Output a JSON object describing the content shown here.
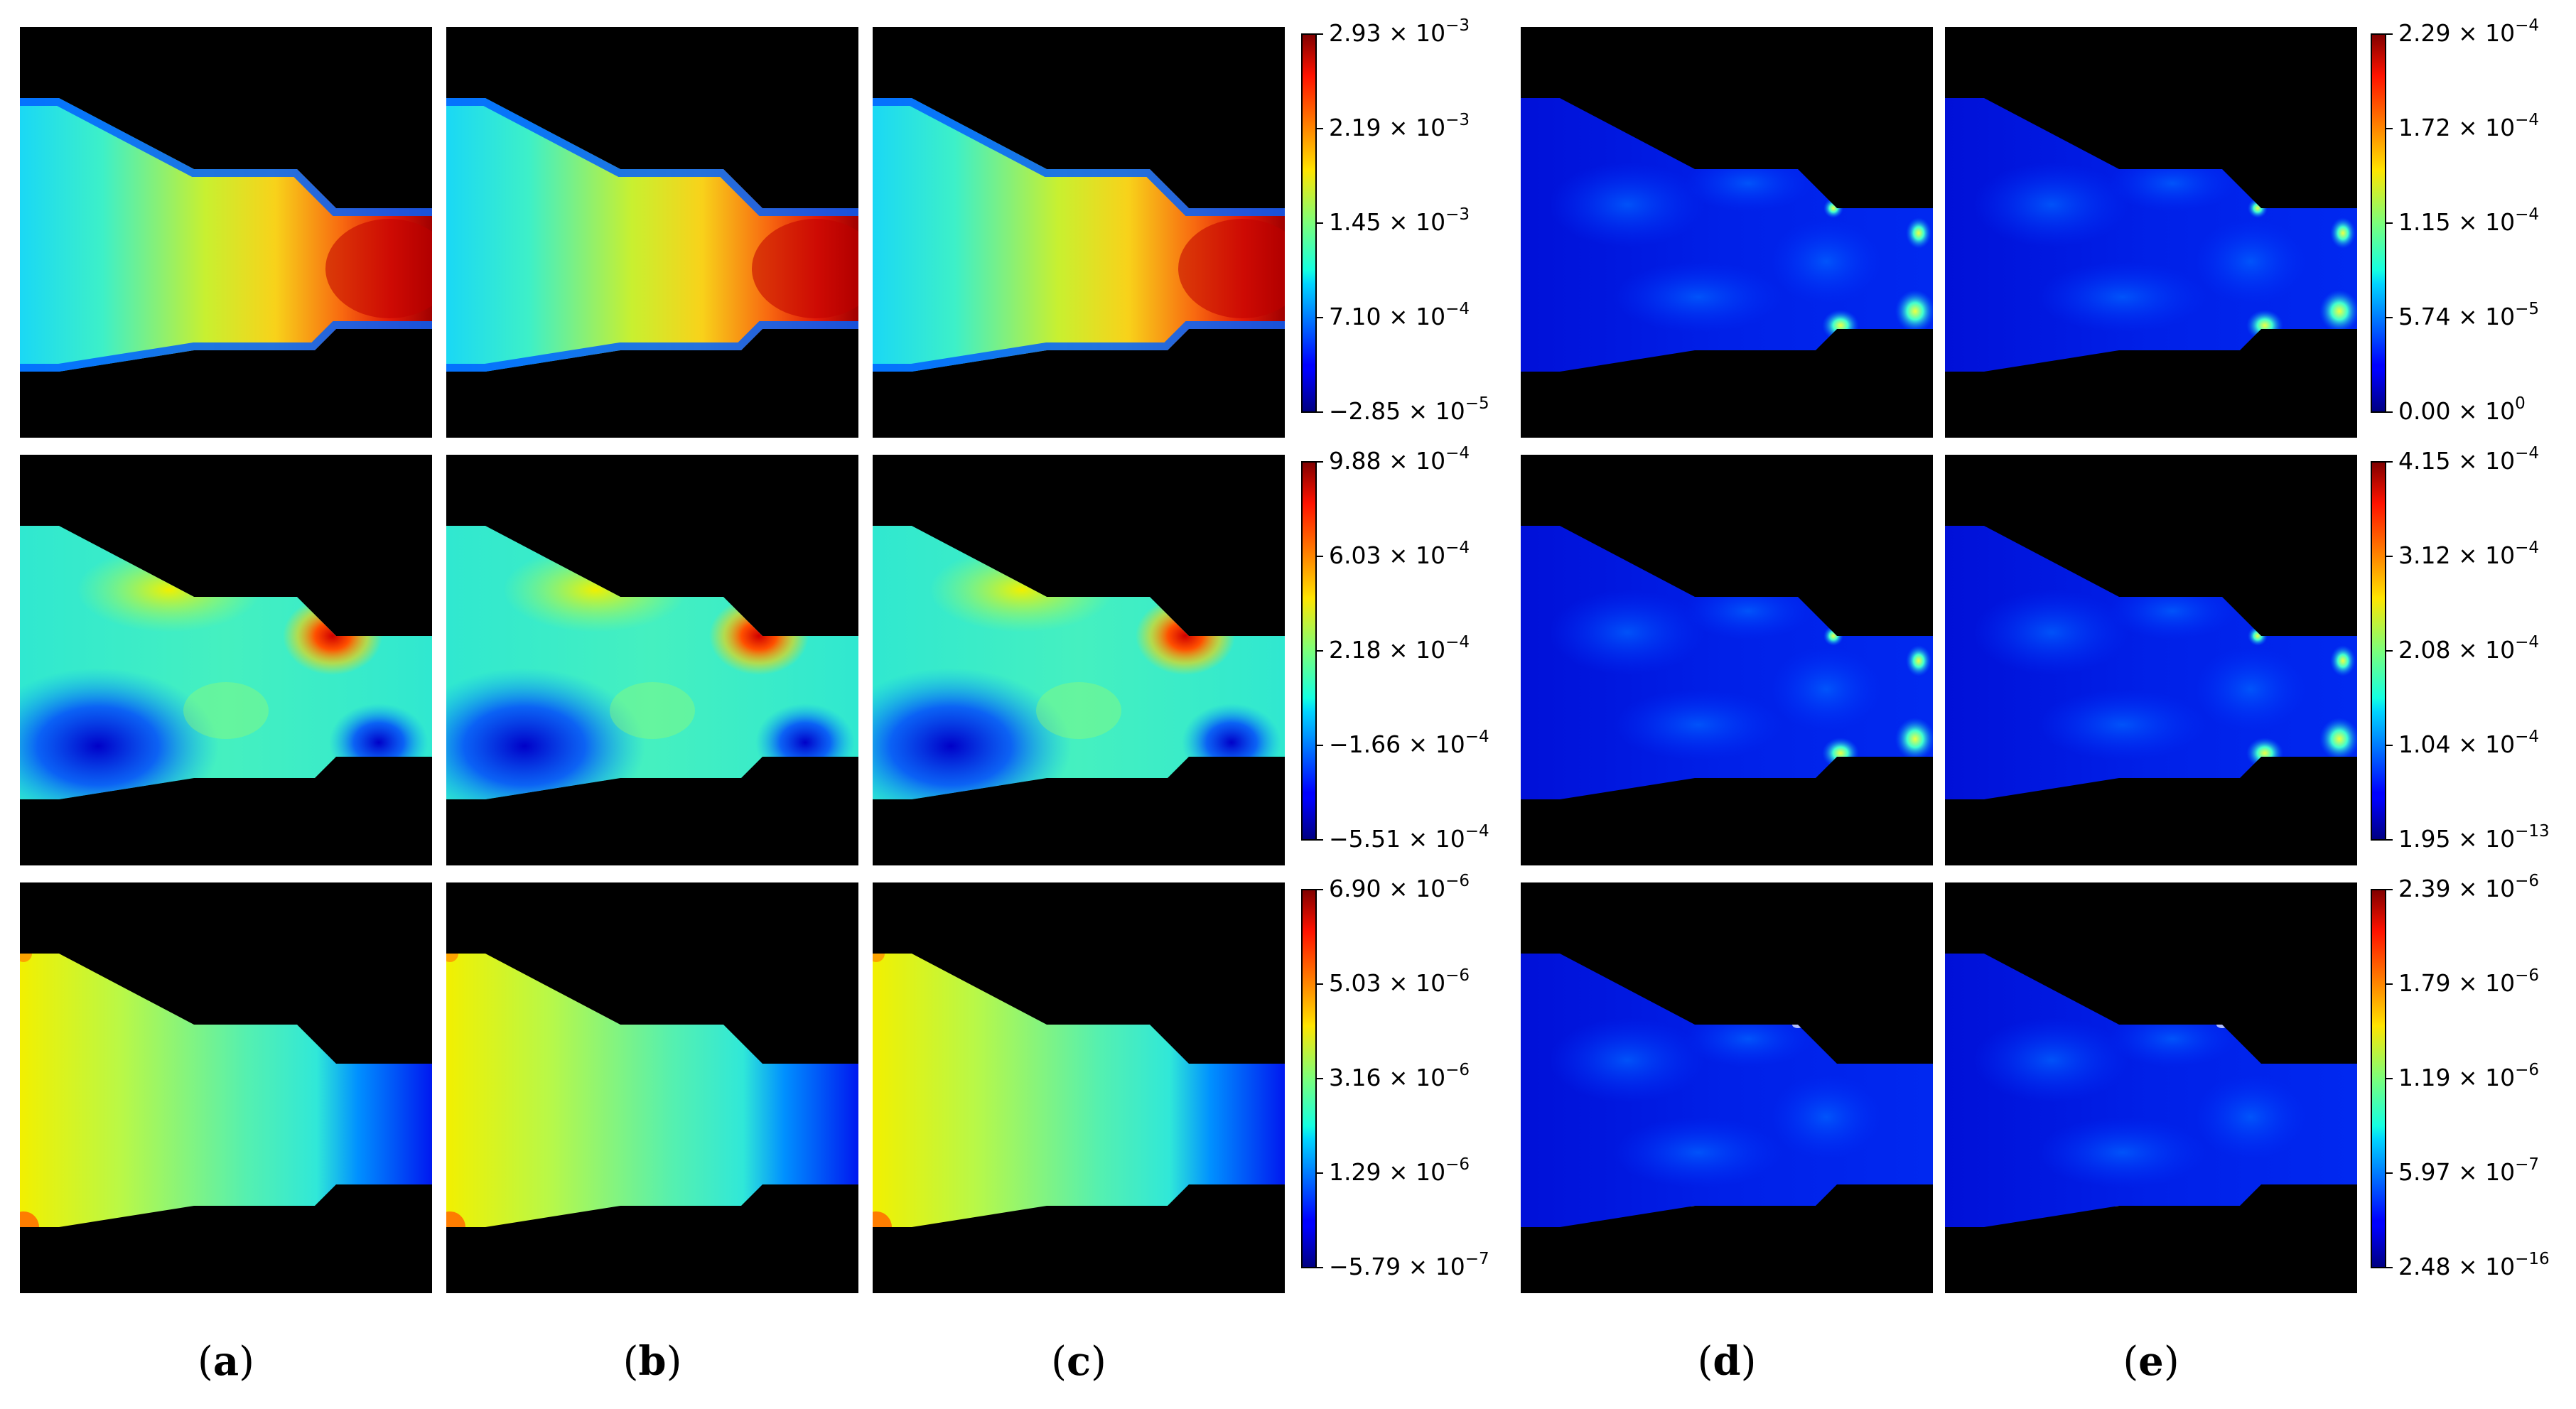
{
  "panels": [
    {
      "id": "a",
      "label": "(a)"
    },
    {
      "id": "b",
      "label": "(b)"
    },
    {
      "id": "c",
      "label": "(c)"
    },
    {
      "id": "d",
      "label": "(d)"
    },
    {
      "id": "e",
      "label": "(e)"
    }
  ],
  "colormap": "jet",
  "colorbars": {
    "field_rows": [
      {
        "row": 1,
        "ticks": [
          "2.93 × 10^-3",
          "2.19 × 10^-3",
          "1.45 × 10^-3",
          "7.10 × 10^-4",
          "−2.85 × 10^-5"
        ]
      },
      {
        "row": 2,
        "ticks": [
          "9.88 × 10^-4",
          "6.03 × 10^-4",
          "2.18 × 10^-4",
          "−1.66 × 10^-4",
          "−5.51 × 10^-4"
        ]
      },
      {
        "row": 3,
        "ticks": [
          "6.90 × 10^-6",
          "5.03 × 10^-6",
          "3.16 × 10^-6",
          "1.29 × 10^-6",
          "−5.79 × 10^-7"
        ]
      }
    ],
    "error_rows": [
      {
        "row": 1,
        "ticks": [
          "2.29 × 10^-4",
          "1.72 × 10^-4",
          "1.15 × 10^-4",
          "5.74 × 10^-5",
          "0.00 × 10^0"
        ]
      },
      {
        "row": 2,
        "ticks": [
          "4.15 × 10^-4",
          "3.12 × 10^-4",
          "2.08 × 10^-4",
          "1.04 × 10^-4",
          "1.95 × 10^-13"
        ]
      },
      {
        "row": 3,
        "ticks": [
          "2.39 × 10^-6",
          "1.79 × 10^-6",
          "1.19 × 10^-6",
          "5.97 × 10^-7",
          "2.48 × 10^-16"
        ]
      }
    ]
  }
}
